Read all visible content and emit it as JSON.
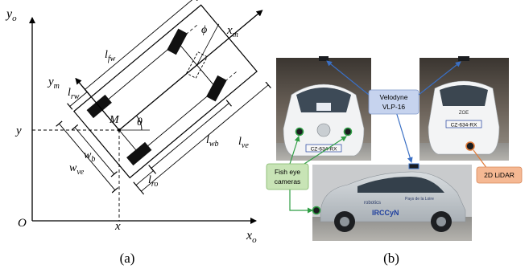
{
  "panel_a": {
    "caption": "(a)",
    "axis": {
      "yo": "y",
      "yo_sub": "o",
      "xo": "x",
      "xo_sub": "o",
      "origin": "O",
      "x": "x",
      "y": "y"
    },
    "vehicle_axes": {
      "xm": "x",
      "xm_sub": "m",
      "ym": "y",
      "ym_sub": "m"
    },
    "point": "M",
    "angles": {
      "theta": "θ",
      "phi": "ϕ"
    },
    "dims": {
      "lfw": "l",
      "lfw_sub": "fw",
      "lrw": "l",
      "lrw_sub": "rw",
      "lwb": "l",
      "lwb_sub": "wb",
      "lve": "l",
      "lve_sub": "ve",
      "lro": "l",
      "lro_sub": "ro",
      "wb": "w",
      "wb_sub": "b",
      "wve": "w",
      "wve_sub": "ve"
    }
  },
  "panel_b": {
    "caption": "(b)",
    "labels": {
      "velodyne_1": "Velodyne",
      "velodyne_2": "VLP-16",
      "fisheye_1": "Fish eye",
      "fisheye_2": "cameras",
      "lidar": "2D LiDAR"
    },
    "plates": {
      "front": "CZ-634-RX",
      "rear": "CZ-634-RX"
    },
    "badge": "ZOE",
    "livery": {
      "brand": "IRCCyN",
      "side1": "robotics",
      "side2": "Pays de la Loire"
    },
    "colors": {
      "velodyne_box": "#c6d3ee",
      "fisheye_box": "#c8e4b6",
      "lidar_box": "#f5b893",
      "link_green": "#2f9e44",
      "link_blue": "#3a6fc4"
    }
  }
}
